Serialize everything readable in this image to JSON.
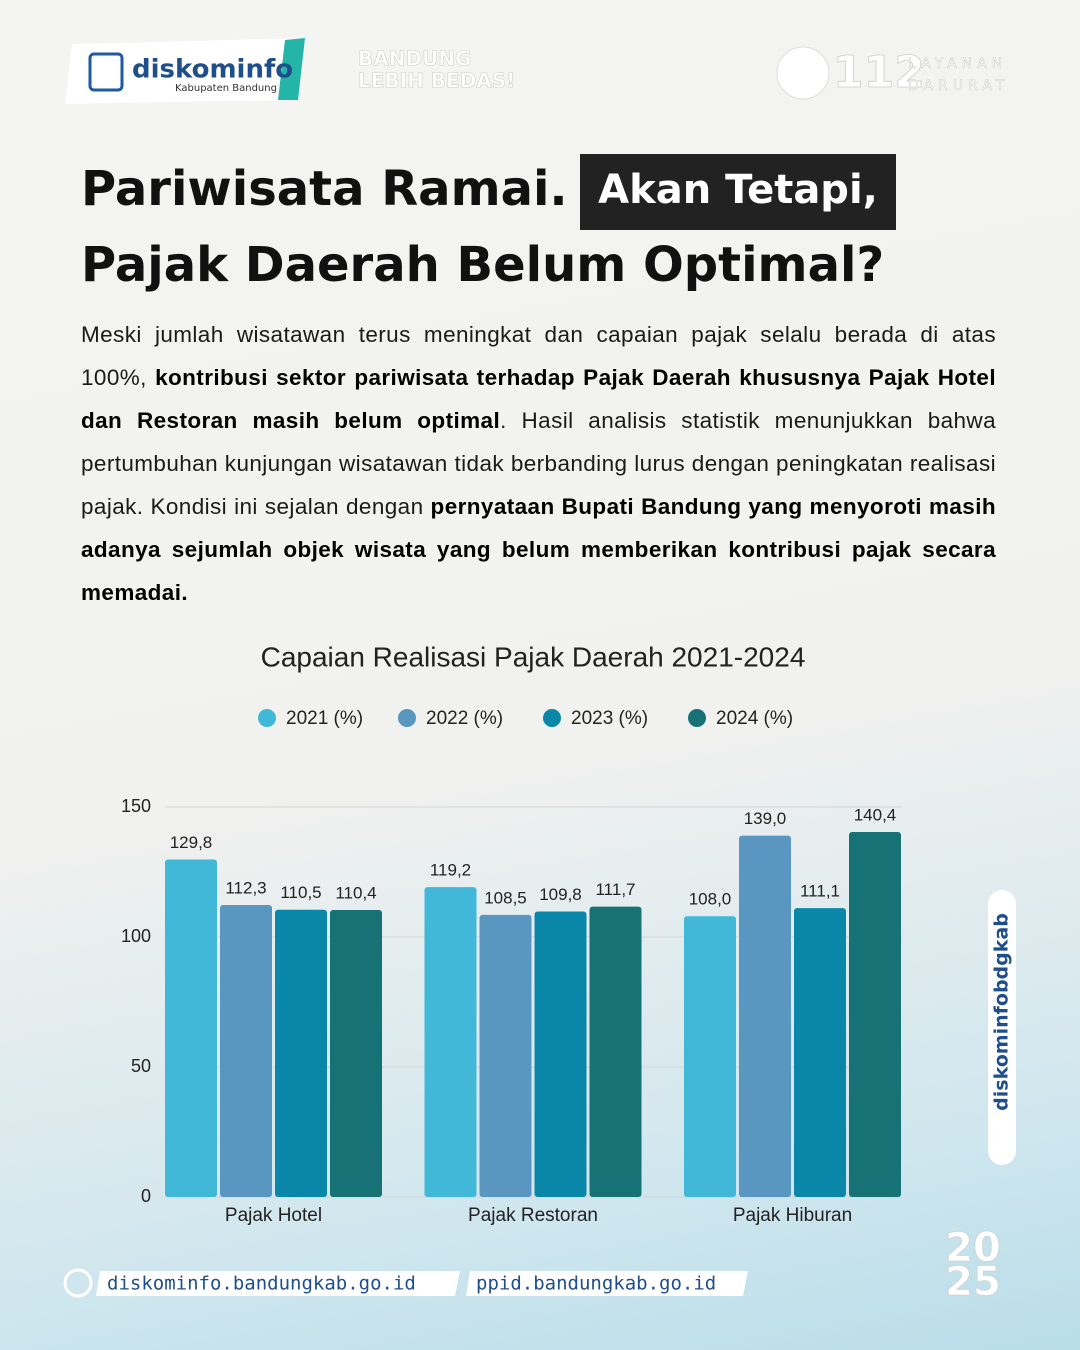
{
  "header": {
    "logo_name": "diskominfo",
    "logo_sub": "Kabupaten Bandung",
    "slogan_1": "BANDUNG",
    "slogan_2": "LEBIH BEDAS!",
    "emergency_number": "112",
    "emergency_1": "LAYANAN",
    "emergency_2": "DARURAT"
  },
  "headline": {
    "part_1": "Pariwisata Ramai.",
    "highlight": "Akan Tetapi,",
    "line_2": "Pajak Daerah Belum Optimal?"
  },
  "paragraph": {
    "segments": [
      {
        "text": "Meski jumlah wisatawan terus meningkat dan capaian pajak selalu berada di atas 100%, ",
        "bold": false
      },
      {
        "text": "kontribusi sektor pariwisata terhadap Pajak Daerah khususnya Pajak Hotel dan Restoran masih belum optimal",
        "bold": true
      },
      {
        "text": ". Hasil analisis statistik menunjukkan bahwa pertumbuhan kunjungan wisatawan tidak berbanding lurus dengan peningkatan realisasi pajak. Kondisi ini sejalan dengan ",
        "bold": false
      },
      {
        "text": "pernyataan Bupati Bandung yang menyoroti masih adanya sejumlah objek wisata yang belum memberikan kontribusi pajak secara memadai.",
        "bold": true
      }
    ]
  },
  "chart_data": {
    "type": "bar",
    "title": "Capaian Realisasi Pajak Daerah 2021-2024",
    "categories": [
      "Pajak Hotel",
      "Pajak Restoran",
      "Pajak Hiburan"
    ],
    "series": [
      {
        "name": "2021 (%)",
        "color": "#41b8d8",
        "values": [
          129.8,
          119.2,
          108.0
        ],
        "value_labels": [
          "129,8",
          "119,2",
          "108,0"
        ]
      },
      {
        "name": "2022 (%)",
        "color": "#5a97c0",
        "values": [
          112.3,
          108.5,
          139.0
        ],
        "value_labels": [
          "112,3",
          "108,5",
          "139,0"
        ]
      },
      {
        "name": "2023 (%)",
        "color": "#0a87a8",
        "values": [
          110.5,
          109.8,
          111.1
        ],
        "value_labels": [
          "110,5",
          "109,8",
          "111,1"
        ]
      },
      {
        "name": "2024 (%)",
        "color": "#177276",
        "values": [
          110.4,
          111.7,
          140.4
        ],
        "value_labels": [
          "110,4",
          "111,7",
          "140,4"
        ]
      }
    ],
    "ylim": [
      0,
      150
    ],
    "yticks": [
      0,
      50,
      100,
      150
    ],
    "grid": true,
    "legend": "top"
  },
  "footer": {
    "site_1": "diskominfo.bandungkab.go.id",
    "site_2": "ppid.bandungkab.go.id",
    "social": "diskominfobdgkab",
    "year_1": "20",
    "year_2": "25"
  }
}
